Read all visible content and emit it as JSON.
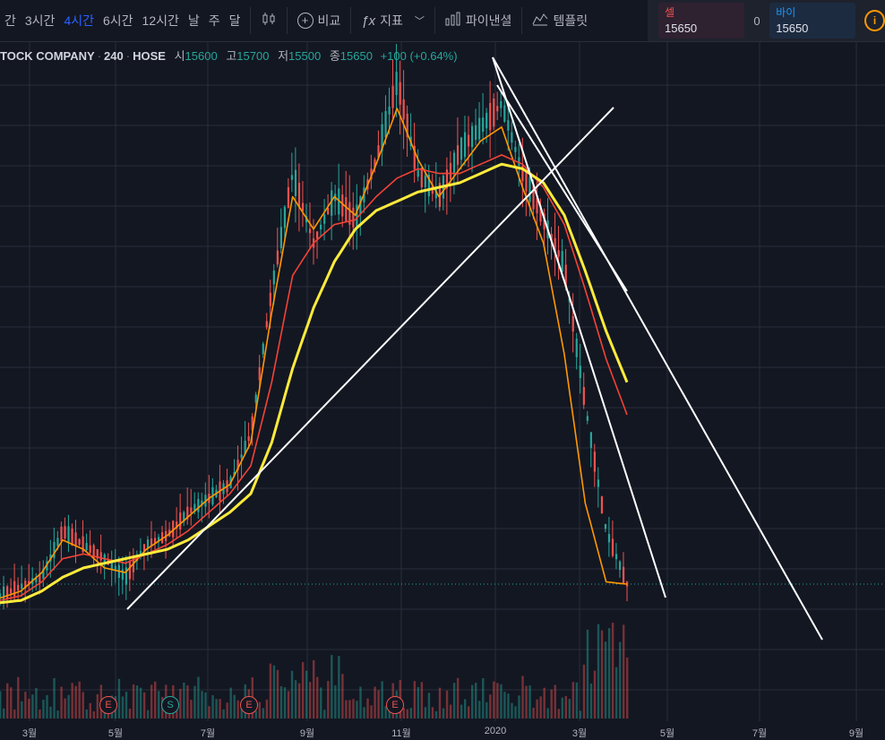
{
  "toolbar": {
    "intervals": [
      "간",
      "3시간",
      "4시간",
      "6시간",
      "12시간",
      "날",
      "주",
      "달"
    ],
    "active_interval": "4시간",
    "compare_label": "비교",
    "indicators_label": "지표",
    "financials_label": "파이낸셜",
    "templates_label": "템플릿"
  },
  "trade": {
    "sell_label": "셀",
    "sell_price": "15650",
    "spread": "0",
    "buy_label": "바이",
    "buy_price": "15650",
    "info_icon": "i"
  },
  "legend": {
    "symbol": "TOCK COMPANY",
    "interval": "240",
    "exchange": "HOSE",
    "open_label": "시",
    "open": "15600",
    "high_label": "고",
    "high": "15700",
    "low_label": "저",
    "low": "15500",
    "close_label": "종",
    "close": "15650",
    "change": "+100 (+0.64%)"
  },
  "x_axis": [
    "3월",
    "5월",
    "7월",
    "9월",
    "11월",
    "2020",
    "3월",
    "5월",
    "7월",
    "9월"
  ],
  "events": [
    "E",
    "S",
    "E",
    "E"
  ],
  "colors": {
    "bg": "#131722",
    "up": "#26a69a",
    "down": "#ef5350",
    "ma_fast": "#ff9800",
    "ma_mid": "#f44336",
    "ma_slow": "#ffeb3b",
    "trendline": "#ffffff"
  },
  "chart_data": {
    "type": "candlestick",
    "series": [
      {
        "name": "price",
        "values": [
          15400,
          15600,
          15800,
          16800,
          16500,
          16200,
          15800,
          16500,
          16700,
          17200,
          17500,
          17800,
          18900,
          22000,
          24500,
          23000,
          24000,
          23500,
          24800,
          26500,
          24500,
          24000,
          25000,
          25500,
          26000,
          24500,
          23500,
          22500,
          19500,
          16800,
          15650
        ]
      },
      {
        "name": "ma_fast",
        "values": [
          15350,
          15500,
          15900,
          16600,
          16400,
          16000,
          15900,
          16400,
          16700,
          17100,
          17500,
          17800,
          18700,
          21500,
          24000,
          23300,
          24000,
          23600,
          24700,
          25900,
          24800,
          24000,
          24600,
          25200,
          25500,
          24200,
          23000,
          20600,
          17400,
          15700,
          15650
        ]
      },
      {
        "name": "ma_mid",
        "values": [
          15300,
          15400,
          15700,
          16200,
          16300,
          16200,
          16100,
          16300,
          16500,
          16800,
          17200,
          17600,
          18200,
          20000,
          22300,
          23000,
          23400,
          23500,
          24000,
          24400,
          24600,
          24500,
          24500,
          24700,
          24900,
          24700,
          24200,
          23400,
          22000,
          20500,
          19300
        ]
      },
      {
        "name": "ma_slow",
        "values": [
          15250,
          15300,
          15500,
          15800,
          16000,
          16100,
          16200,
          16300,
          16400,
          16600,
          16900,
          17200,
          17600,
          18700,
          20300,
          21600,
          22600,
          23300,
          23700,
          23900,
          24100,
          24200,
          24300,
          24500,
          24700,
          24600,
          24300,
          23600,
          22400,
          21100,
          20000
        ]
      }
    ]
  }
}
